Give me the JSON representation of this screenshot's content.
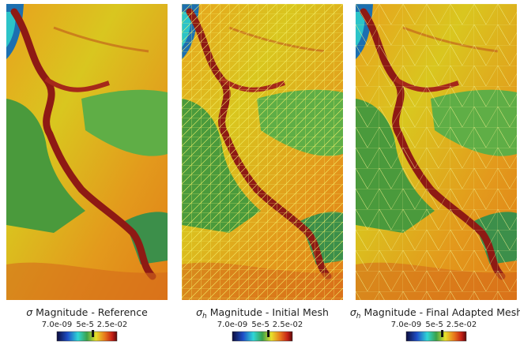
{
  "panels": [
    {
      "symbol": "σ",
      "subscript": null,
      "caption": " Magnitude - Reference",
      "colorbar": {
        "min_label": "7.0e-09",
        "mid_label": "5e-5",
        "max_label": "2.5e-02"
      }
    },
    {
      "symbol": "σ",
      "subscript": "h",
      "caption": " Magnitude - Initial Mesh",
      "colorbar": {
        "min_label": "7.0e-09",
        "mid_label": "5e-5",
        "max_label": "2.5e-02"
      }
    },
    {
      "symbol": "σ",
      "subscript": "h",
      "caption": " Magnitude - Final Adapted Mesh",
      "colorbar": {
        "min_label": "7.0e-09",
        "mid_label": "5e-5",
        "max_label": "2.5e-02"
      }
    }
  ]
}
